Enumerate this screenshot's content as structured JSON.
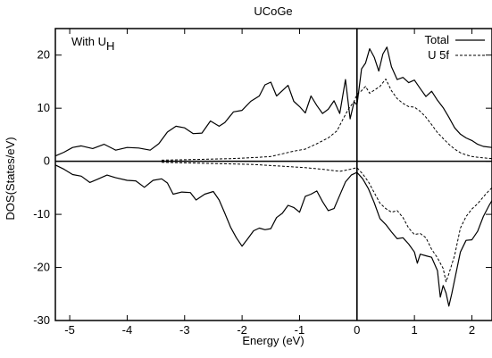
{
  "chart_data": {
    "type": "line",
    "title": "UCoGe",
    "xlabel": "Energy (eV)",
    "ylabel": "DOS(States/eV)",
    "xlim": [
      -5.25,
      2.35
    ],
    "ylim": [
      -30,
      25
    ],
    "xticks": [
      -5,
      -4,
      -3,
      -2,
      -1,
      0,
      1,
      2
    ],
    "yticks": [
      -30,
      -20,
      -10,
      0,
      10,
      20
    ],
    "grid": false,
    "legend": "top-right",
    "annotation": {
      "text": "With U",
      "subscript": "H"
    },
    "series": [
      {
        "name": "Total",
        "style": "solid",
        "segments": [
          [
            [
              -5.25,
              1.0
            ],
            [
              -5.1,
              1.7
            ],
            [
              -4.95,
              2.6
            ],
            [
              -4.8,
              2.9
            ],
            [
              -4.6,
              2.4
            ],
            [
              -4.4,
              3.2
            ],
            [
              -4.2,
              2.1
            ],
            [
              -4.0,
              2.6
            ],
            [
              -3.8,
              2.5
            ],
            [
              -3.6,
              2.1
            ],
            [
              -3.45,
              3.3
            ],
            [
              -3.3,
              5.5
            ],
            [
              -3.15,
              6.6
            ],
            [
              -3.0,
              6.3
            ],
            [
              -2.85,
              5.2
            ],
            [
              -2.7,
              5.3
            ],
            [
              -2.55,
              7.6
            ],
            [
              -2.4,
              6.6
            ],
            [
              -2.3,
              7.3
            ],
            [
              -2.15,
              9.3
            ],
            [
              -2.0,
              9.6
            ],
            [
              -1.85,
              11.3
            ],
            [
              -1.7,
              12.3
            ],
            [
              -1.6,
              14.4
            ],
            [
              -1.5,
              14.9
            ],
            [
              -1.4,
              12.3
            ],
            [
              -1.3,
              13.3
            ],
            [
              -1.2,
              14.3
            ],
            [
              -1.1,
              11.3
            ],
            [
              -1.0,
              10.3
            ],
            [
              -0.9,
              9.1
            ],
            [
              -0.8,
              12.3
            ],
            [
              -0.7,
              10.5
            ],
            [
              -0.6,
              9.0
            ],
            [
              -0.5,
              9.8
            ],
            [
              -0.4,
              11.4
            ],
            [
              -0.3,
              9.0
            ],
            [
              -0.2,
              15.4
            ],
            [
              -0.12,
              8.0
            ],
            [
              -0.05,
              11.2
            ],
            [
              0.0,
              10.6
            ],
            [
              0.08,
              17.4
            ],
            [
              0.15,
              18.5
            ],
            [
              0.22,
              21.2
            ],
            [
              0.3,
              19.6
            ],
            [
              0.38,
              17.0
            ],
            [
              0.45,
              20.2
            ],
            [
              0.52,
              21.5
            ],
            [
              0.6,
              17.8
            ],
            [
              0.7,
              15.4
            ],
            [
              0.8,
              15.8
            ],
            [
              0.9,
              14.8
            ],
            [
              1.0,
              15.3
            ],
            [
              1.1,
              13.7
            ],
            [
              1.2,
              12.2
            ],
            [
              1.3,
              13.2
            ],
            [
              1.4,
              11.5
            ],
            [
              1.5,
              10.1
            ],
            [
              1.6,
              8.3
            ],
            [
              1.7,
              6.3
            ],
            [
              1.8,
              5.1
            ],
            [
              1.9,
              4.4
            ],
            [
              2.0,
              3.9
            ],
            [
              2.1,
              3.2
            ],
            [
              2.2,
              2.8
            ],
            [
              2.35,
              2.6
            ]
          ],
          [
            [
              -5.25,
              -0.7
            ],
            [
              -5.1,
              -1.5
            ],
            [
              -4.95,
              -2.5
            ],
            [
              -4.8,
              -2.8
            ],
            [
              -4.65,
              -4.0
            ],
            [
              -4.5,
              -3.3
            ],
            [
              -4.35,
              -2.6
            ],
            [
              -4.2,
              -3.1
            ],
            [
              -4.0,
              -3.6
            ],
            [
              -3.85,
              -3.7
            ],
            [
              -3.7,
              -4.9
            ],
            [
              -3.55,
              -3.6
            ],
            [
              -3.4,
              -3.3
            ],
            [
              -3.3,
              -4.1
            ],
            [
              -3.2,
              -6.2
            ],
            [
              -3.05,
              -5.8
            ],
            [
              -2.9,
              -5.9
            ],
            [
              -2.8,
              -7.3
            ],
            [
              -2.65,
              -6.2
            ],
            [
              -2.5,
              -5.7
            ],
            [
              -2.4,
              -7.3
            ],
            [
              -2.3,
              -9.8
            ],
            [
              -2.2,
              -12.4
            ],
            [
              -2.1,
              -14.4
            ],
            [
              -2.0,
              -16.0
            ],
            [
              -1.9,
              -14.6
            ],
            [
              -1.8,
              -13.1
            ],
            [
              -1.7,
              -12.6
            ],
            [
              -1.6,
              -12.9
            ],
            [
              -1.5,
              -12.7
            ],
            [
              -1.4,
              -10.6
            ],
            [
              -1.3,
              -9.8
            ],
            [
              -1.2,
              -8.3
            ],
            [
              -1.1,
              -8.7
            ],
            [
              -1.0,
              -9.6
            ],
            [
              -0.9,
              -6.6
            ],
            [
              -0.8,
              -6.2
            ],
            [
              -0.7,
              -5.6
            ],
            [
              -0.6,
              -7.6
            ],
            [
              -0.5,
              -9.3
            ],
            [
              -0.4,
              -8.9
            ],
            [
              -0.3,
              -6.4
            ],
            [
              -0.2,
              -3.9
            ],
            [
              -0.1,
              -2.6
            ],
            [
              0.0,
              -2.1
            ],
            [
              0.1,
              -3.3
            ],
            [
              0.2,
              -5.2
            ],
            [
              0.3,
              -7.8
            ],
            [
              0.4,
              -10.8
            ],
            [
              0.5,
              -11.9
            ],
            [
              0.6,
              -13.3
            ],
            [
              0.7,
              -14.6
            ],
            [
              0.8,
              -14.4
            ],
            [
              0.9,
              -15.6
            ],
            [
              1.0,
              -17.1
            ],
            [
              1.05,
              -19.2
            ],
            [
              1.1,
              -17.5
            ],
            [
              1.2,
              -17.8
            ],
            [
              1.3,
              -18.1
            ],
            [
              1.4,
              -20.6
            ],
            [
              1.45,
              -25.6
            ],
            [
              1.5,
              -23.4
            ],
            [
              1.55,
              -24.8
            ],
            [
              1.6,
              -27.3
            ],
            [
              1.65,
              -24.9
            ],
            [
              1.7,
              -22.3
            ],
            [
              1.8,
              -17.1
            ],
            [
              1.9,
              -14.9
            ],
            [
              2.0,
              -14.8
            ],
            [
              2.1,
              -13.2
            ],
            [
              2.2,
              -10.4
            ],
            [
              2.3,
              -8.3
            ],
            [
              2.35,
              -7.4
            ]
          ]
        ]
      },
      {
        "name": "U 5f",
        "style": "dashed",
        "segments": [
          [
            [
              -3.4,
              0.2
            ],
            [
              -3.0,
              0.3
            ],
            [
              -2.6,
              0.4
            ],
            [
              -2.2,
              0.5
            ],
            [
              -1.8,
              0.7
            ],
            [
              -1.5,
              0.9
            ],
            [
              -1.3,
              1.4
            ],
            [
              -1.1,
              1.9
            ],
            [
              -0.9,
              2.3
            ],
            [
              -0.7,
              3.3
            ],
            [
              -0.5,
              4.4
            ],
            [
              -0.35,
              5.7
            ],
            [
              -0.25,
              7.8
            ],
            [
              -0.15,
              9.8
            ],
            [
              -0.05,
              11.3
            ],
            [
              0.0,
              12.6
            ],
            [
              0.08,
              13.3
            ],
            [
              0.15,
              14.1
            ],
            [
              0.22,
              12.8
            ],
            [
              0.3,
              13.4
            ],
            [
              0.4,
              14.1
            ],
            [
              0.5,
              15.5
            ],
            [
              0.6,
              13.3
            ],
            [
              0.7,
              11.8
            ],
            [
              0.8,
              10.9
            ],
            [
              0.9,
              10.3
            ],
            [
              1.0,
              10.2
            ],
            [
              1.1,
              9.4
            ],
            [
              1.2,
              8.3
            ],
            [
              1.3,
              6.9
            ],
            [
              1.4,
              5.4
            ],
            [
              1.5,
              4.3
            ],
            [
              1.6,
              3.2
            ],
            [
              1.7,
              2.3
            ],
            [
              1.8,
              1.6
            ],
            [
              1.9,
              1.2
            ],
            [
              2.0,
              0.9
            ],
            [
              2.15,
              0.7
            ],
            [
              2.35,
              0.5
            ]
          ],
          [
            [
              -3.4,
              -0.2
            ],
            [
              -3.0,
              -0.3
            ],
            [
              -2.6,
              -0.4
            ],
            [
              -2.2,
              -0.5
            ],
            [
              -1.8,
              -0.6
            ],
            [
              -1.5,
              -0.8
            ],
            [
              -1.2,
              -1.0
            ],
            [
              -0.9,
              -1.2
            ],
            [
              -0.6,
              -1.5
            ],
            [
              -0.3,
              -1.9
            ],
            [
              -0.15,
              -1.6
            ],
            [
              0.0,
              -1.2
            ],
            [
              0.1,
              -2.4
            ],
            [
              0.2,
              -3.9
            ],
            [
              0.3,
              -5.9
            ],
            [
              0.4,
              -7.9
            ],
            [
              0.5,
              -8.9
            ],
            [
              0.6,
              -9.6
            ],
            [
              0.7,
              -9.3
            ],
            [
              0.8,
              -10.6
            ],
            [
              0.9,
              -12.6
            ],
            [
              1.0,
              -13.8
            ],
            [
              1.1,
              -13.6
            ],
            [
              1.2,
              -14.4
            ],
            [
              1.3,
              -16.6
            ],
            [
              1.4,
              -18.2
            ],
            [
              1.5,
              -20.2
            ],
            [
              1.55,
              -22.7
            ],
            [
              1.6,
              -21.2
            ],
            [
              1.7,
              -17.7
            ],
            [
              1.8,
              -12.6
            ],
            [
              1.9,
              -10.4
            ],
            [
              2.0,
              -9.0
            ],
            [
              2.1,
              -8.0
            ],
            [
              2.2,
              -6.7
            ],
            [
              2.3,
              -5.5
            ],
            [
              2.35,
              -5.0
            ]
          ]
        ]
      }
    ]
  }
}
